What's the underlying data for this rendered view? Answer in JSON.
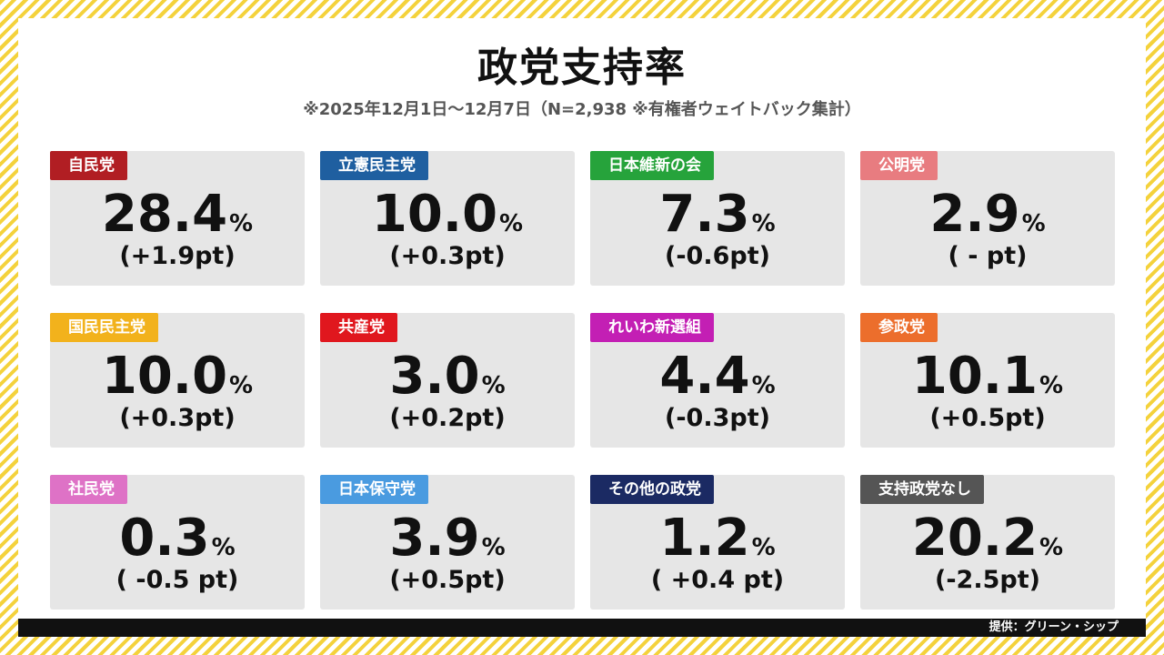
{
  "chart_data": {
    "type": "table",
    "title": "政党支持率",
    "subtitle": "※2025年12月1日～12月7日（N=2,938 ※有権者ウェイトバック集計）",
    "unit": "%",
    "parties": [
      {
        "name": "自民党",
        "value": "28.4",
        "change": "(+1.9pt)",
        "color": "#b11e23"
      },
      {
        "name": "立憲民主党",
        "value": "10.0",
        "change": "(+0.3pt)",
        "color": "#1f5fa0"
      },
      {
        "name": "日本維新の会",
        "value": "7.3",
        "change": "(-0.6pt)",
        "color": "#26a33b"
      },
      {
        "name": "公明党",
        "value": "2.9",
        "change": "( - pt)",
        "color": "#e87c80"
      },
      {
        "name": "国民民主党",
        "value": "10.0",
        "change": "(+0.3pt)",
        "color": "#f2b21c"
      },
      {
        "name": "共産党",
        "value": "3.0",
        "change": "(+0.2pt)",
        "color": "#e0171e"
      },
      {
        "name": "れいわ新選組",
        "value": "4.4",
        "change": "(-0.3pt)",
        "color": "#c31fb4"
      },
      {
        "name": "参政党",
        "value": "10.1",
        "change": "(+0.5pt)",
        "color": "#ec6e2c"
      },
      {
        "name": "社民党",
        "value": "0.3",
        "change": "( -0.5 pt)",
        "color": "#de72c6"
      },
      {
        "name": "日本保守党",
        "value": "3.9",
        "change": "(+0.5pt)",
        "color": "#4a9be0"
      },
      {
        "name": "その他の政党",
        "value": "1.2",
        "change": "( +0.4 pt)",
        "color": "#1b2a63"
      },
      {
        "name": "支持政党なし",
        "value": "20.2",
        "change": "(-2.5pt)",
        "color": "#555555"
      }
    ]
  },
  "footer": {
    "source": "提供：グリーン・シップ"
  }
}
